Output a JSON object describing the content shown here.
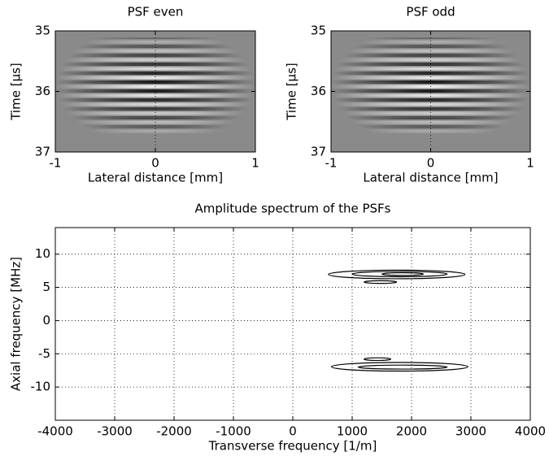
{
  "chart_data": [
    {
      "type": "image",
      "title": "PSF even",
      "xlabel": "Lateral distance [mm]",
      "ylabel": "Time [µs]",
      "xlim": [
        -1,
        1
      ],
      "ylim": [
        37,
        35
      ],
      "xticks": [
        -1,
        0,
        1
      ],
      "yticks": [
        35,
        36,
        37
      ],
      "grid": false
    },
    {
      "type": "image",
      "title": "PSF odd",
      "xlabel": "Lateral distance [mm]",
      "ylabel": "Time [µs]",
      "xlim": [
        -1,
        1
      ],
      "ylim": [
        37,
        35
      ],
      "xticks": [
        -1,
        0,
        1
      ],
      "yticks": [
        35,
        36,
        37
      ],
      "grid": false
    },
    {
      "type": "contour",
      "title": "Amplitude spectrum of the PSFs",
      "xlabel": "Transverse frequency [1/m]",
      "ylabel": "Axial frequency [MHz]",
      "xlim": [
        -4000,
        4000
      ],
      "ylim": [
        -15,
        14
      ],
      "xticks": [
        -4000,
        -3000,
        -2000,
        -1000,
        0,
        1000,
        2000,
        3000,
        4000
      ],
      "yticks": [
        -10,
        -5,
        0,
        5,
        10
      ],
      "grid": true,
      "color": "#000000",
      "contours": [
        {
          "x": [
            600,
            2900
          ],
          "y": [
            6.3,
            7.6
          ]
        },
        {
          "x": [
            1000,
            2600
          ],
          "y": [
            6.6,
            7.4
          ]
        },
        {
          "x": [
            1500,
            2200
          ],
          "y": [
            6.8,
            7.2
          ]
        },
        {
          "x": [
            1200,
            1750
          ],
          "y": [
            5.6,
            6.0
          ]
        },
        {
          "x": [
            650,
            2950
          ],
          "y": [
            -7.6,
            -6.3
          ]
        },
        {
          "x": [
            1100,
            2600
          ],
          "y": [
            -7.3,
            -6.7
          ]
        },
        {
          "x": [
            1200,
            1650
          ],
          "y": [
            -6.0,
            -5.6
          ]
        }
      ]
    }
  ]
}
